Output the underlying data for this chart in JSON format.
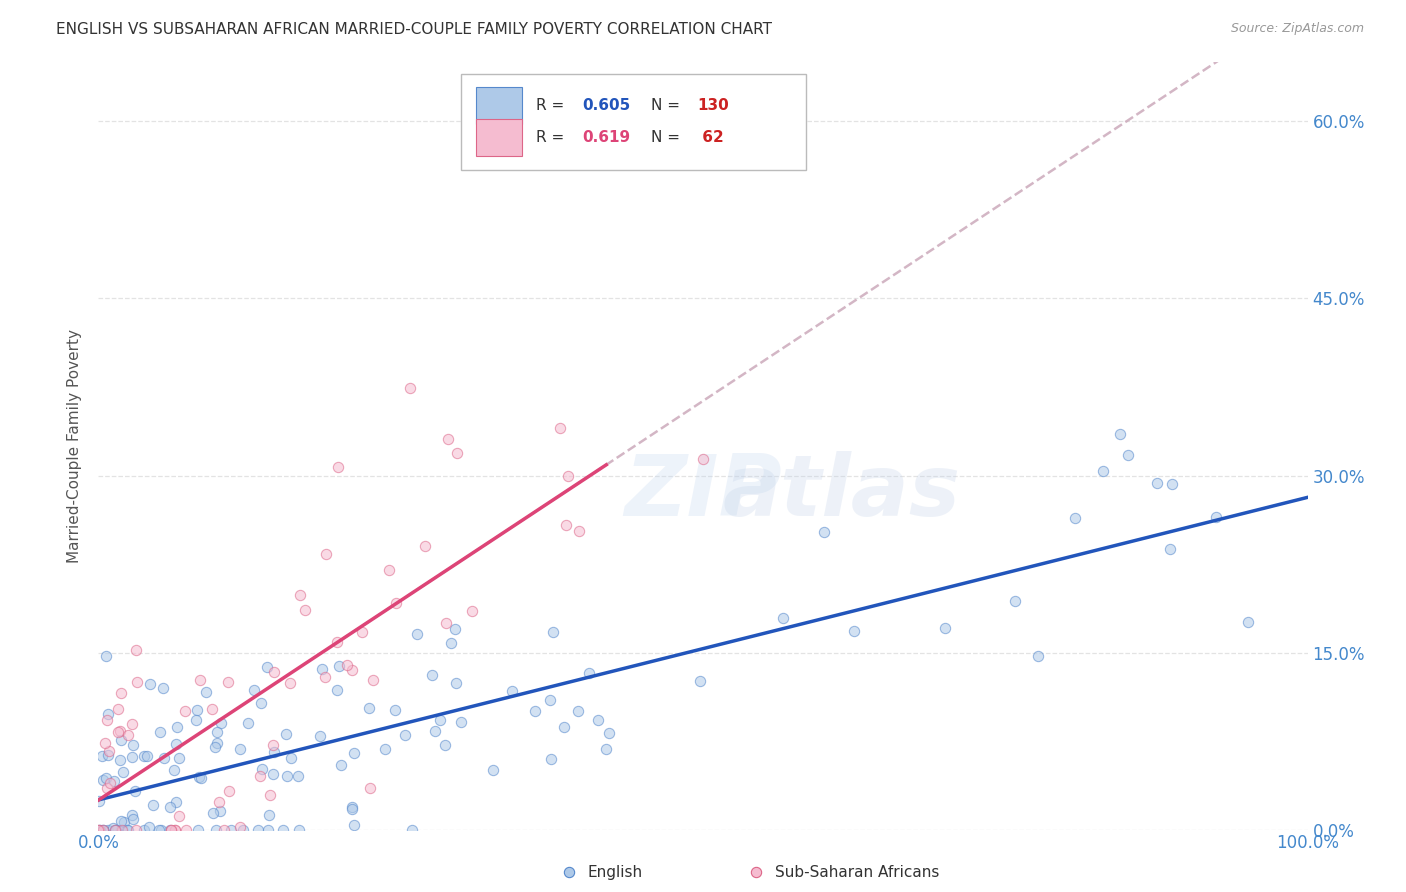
{
  "title": "ENGLISH VS SUBSAHARAN AFRICAN MARRIED-COUPLE FAMILY POVERTY CORRELATION CHART",
  "source": "Source: ZipAtlas.com",
  "ylabel": "Married-Couple Family Poverty",
  "ytick_labels": [
    "0.0%",
    "15.0%",
    "30.0%",
    "45.0%",
    "60.0%"
  ],
  "ytick_values": [
    0,
    15,
    30,
    45,
    60
  ],
  "xlim": [
    0,
    100
  ],
  "ylim": [
    0,
    65
  ],
  "english_color": "#aec9e8",
  "english_edge_color": "#5588cc",
  "english_line_color": "#2255bb",
  "subsaharan_color": "#f5bcd0",
  "subsaharan_edge_color": "#dd6688",
  "subsaharan_line_color": "#dd4477",
  "subsaharan_line_dashed_color": "#ccaabb",
  "english_R": 0.605,
  "english_N": 130,
  "subsaharan_R": 0.619,
  "subsaharan_N": 62,
  "watermark": "ZIPatlas",
  "background_color": "#ffffff",
  "grid_color": "#dddddd",
  "title_color": "#333333",
  "axis_label_color": "#4488cc",
  "marker_size": 55,
  "marker_alpha": 0.55
}
